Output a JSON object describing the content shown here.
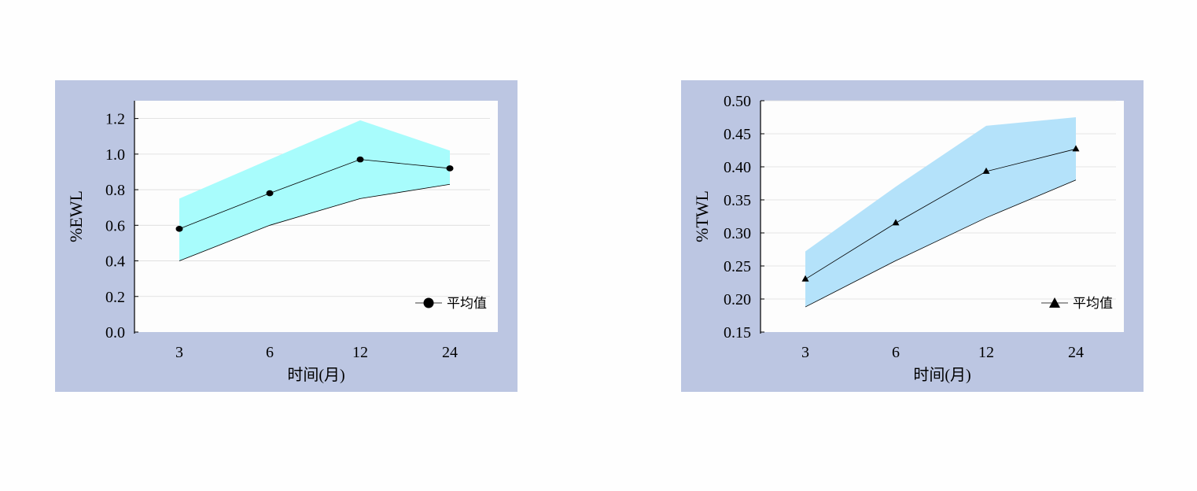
{
  "charts": {
    "ewl": {
      "type": "area",
      "ylabel": "%EWL",
      "xlabel": "时间(月)",
      "categories": [
        "3",
        "6",
        "12",
        "24"
      ],
      "ylim": [
        0,
        1.3
      ],
      "yticks": [
        "0.0",
        "0.2",
        "0.4",
        "0.6",
        "0.8",
        "1.0",
        "1.2"
      ],
      "tick_values": [
        0,
        0.2,
        0.4,
        0.6,
        0.8,
        1.0,
        1.2
      ],
      "grid": true,
      "band": {
        "upper": [
          0.75,
          0.97,
          1.19,
          1.02
        ],
        "lower": [
          0.4,
          0.6,
          0.75,
          0.83
        ]
      },
      "series": [
        {
          "name": "平均值",
          "values": [
            0.58,
            0.78,
            0.97,
            0.92
          ],
          "marker": "circle"
        }
      ],
      "legend_position": "bottom-right",
      "band_color": "#a8fcfc"
    },
    "twl": {
      "type": "area",
      "ylabel": "%TWL",
      "xlabel": "时间(月)",
      "categories": [
        "3",
        "6",
        "12",
        "24"
      ],
      "ylim": [
        0.15,
        0.5
      ],
      "yticks": [
        "0.15",
        "0.20",
        "0.25",
        "0.30",
        "0.35",
        "0.40",
        "0.45",
        "0.50"
      ],
      "tick_values": [
        0.15,
        0.2,
        0.25,
        0.3,
        0.35,
        0.4,
        0.45,
        0.5
      ],
      "grid": true,
      "band": {
        "upper": [
          0.272,
          0.37,
          0.462,
          0.475
        ],
        "lower": [
          0.188,
          0.258,
          0.323,
          0.38
        ]
      },
      "series": [
        {
          "name": "平均值",
          "values": [
            0.23,
            0.315,
            0.393,
            0.427
          ],
          "marker": "triangle"
        }
      ],
      "legend_position": "bottom-right",
      "band_color": "#b4e2fa"
    }
  }
}
